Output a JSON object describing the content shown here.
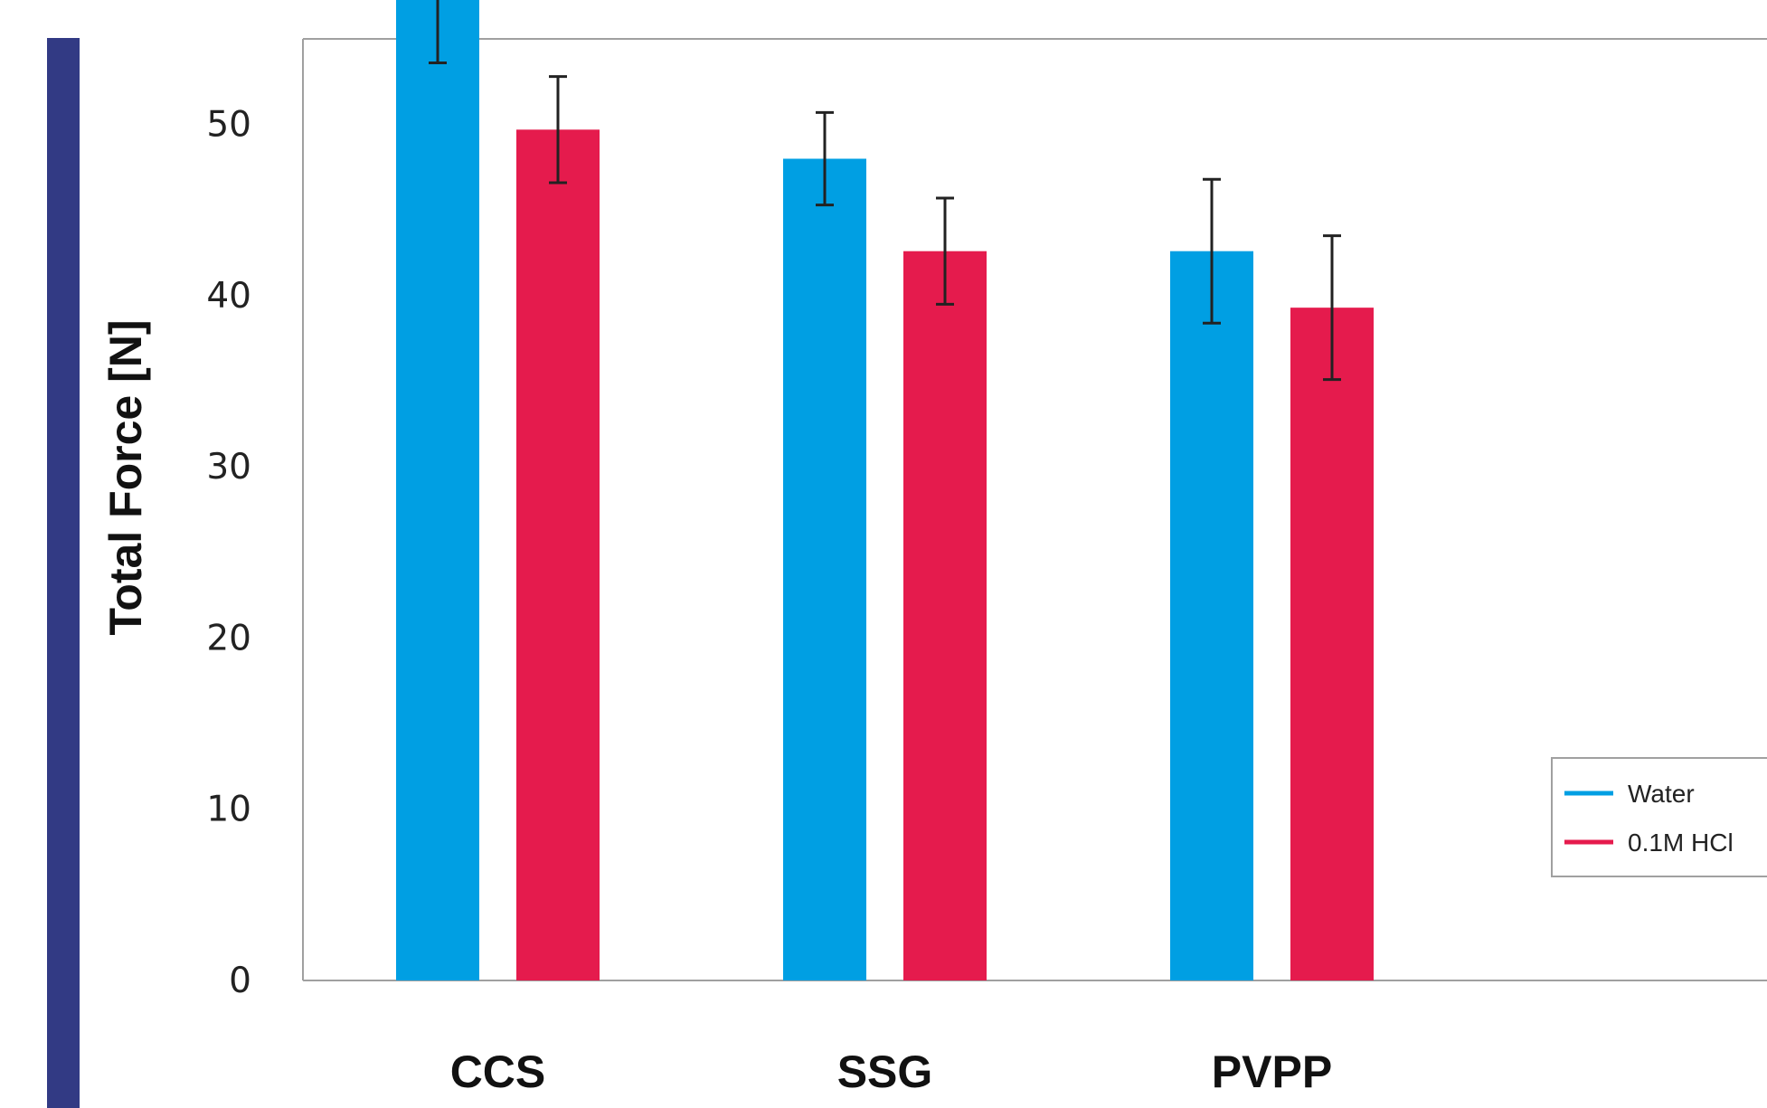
{
  "chart_data": {
    "type": "bar",
    "title": "",
    "xlabel": "",
    "ylabel": "Total Force [N]",
    "ylim": [
      0,
      55
    ],
    "yticks": [
      0,
      10,
      20,
      30,
      40,
      50
    ],
    "grid": false,
    "legend_position": "right",
    "categories": [
      "CCS",
      "SSG",
      "PVPP"
    ],
    "series": [
      {
        "name": "Water",
        "color": "#009fe3",
        "values": [
          57.8,
          48.0,
          42.6
        ],
        "errors": [
          4.2,
          2.7,
          4.2
        ]
      },
      {
        "name": "0.1M HCl",
        "color": "#e51b4d",
        "values": [
          49.7,
          42.6,
          39.3
        ],
        "errors": [
          3.1,
          3.1,
          4.2
        ]
      }
    ]
  },
  "colors": {
    "accent_bar": "#323a84",
    "axis": "#a0a0a0",
    "error_bar": "#222222"
  }
}
